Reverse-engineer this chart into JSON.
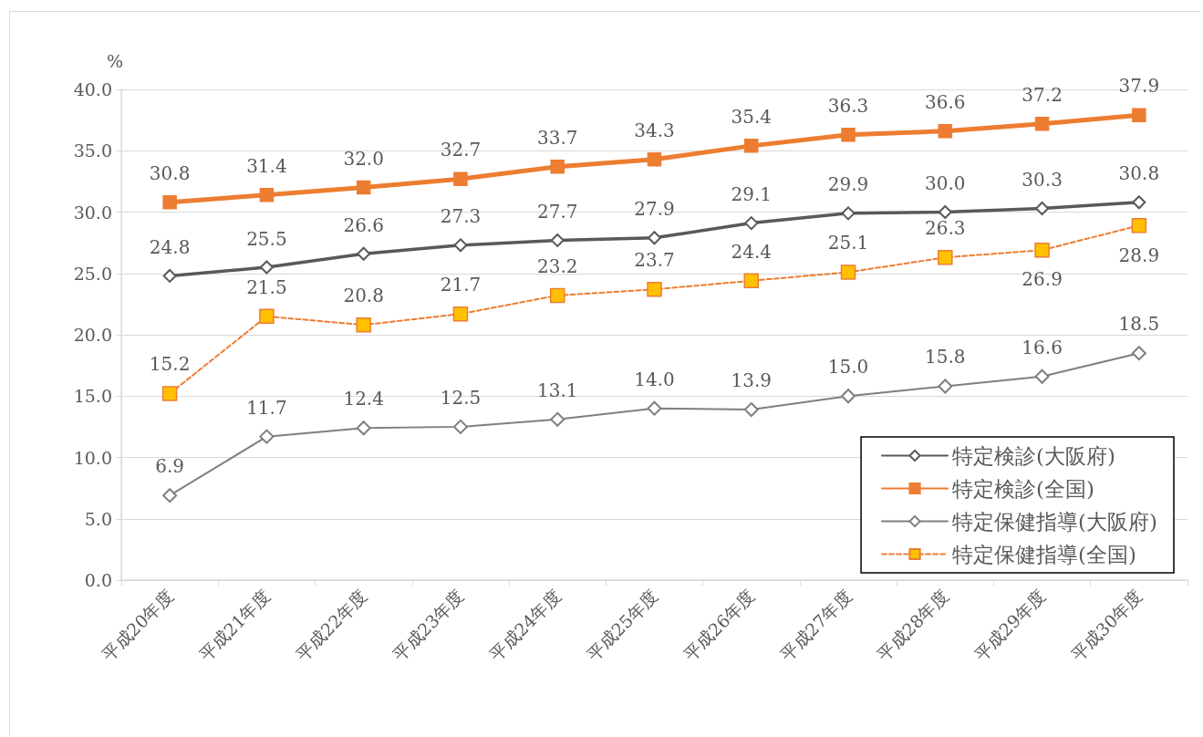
{
  "chart_data": {
    "type": "line",
    "ylabel": "%",
    "categories": [
      "平成20年度",
      "平成21年度",
      "平成22年度",
      "平成23年度",
      "平成24年度",
      "平成25年度",
      "平成26年度",
      "平成27年度",
      "平成28年度",
      "平成29年度",
      "平成30年度"
    ],
    "series": [
      {
        "name": "特定検診(大阪府)",
        "color": "#595959",
        "marker": "diamond",
        "line_style": "solid",
        "values": [
          24.8,
          25.5,
          26.6,
          27.3,
          27.7,
          27.9,
          29.1,
          29.9,
          30.0,
          30.3,
          30.8
        ],
        "value_labels": [
          "24.8",
          "25.5",
          "26.6",
          "27.3",
          "27.7",
          "27.9",
          "29.1",
          "29.9",
          "30.0",
          "30.3",
          "30.8"
        ]
      },
      {
        "name": "特定検診(全国)",
        "color": "#ed7d31",
        "marker": "square",
        "line_style": "solid",
        "values": [
          30.8,
          31.4,
          32.0,
          32.7,
          33.7,
          34.3,
          35.4,
          36.3,
          36.6,
          37.2,
          37.9
        ],
        "value_labels": [
          "30.8",
          "31.4",
          "32.0",
          "32.7",
          "33.7",
          "34.3",
          "35.4",
          "36.3",
          "36.6",
          "37.2",
          "37.9"
        ]
      },
      {
        "name": "特定保健指導(大阪府)",
        "color": "#7f7f7f",
        "marker": "diamond",
        "line_style": "solid",
        "values": [
          6.9,
          11.7,
          12.4,
          12.5,
          13.1,
          14.0,
          13.9,
          15.0,
          15.8,
          16.6,
          18.5
        ],
        "value_labels": [
          "6.9",
          "11.7",
          "12.4",
          "12.5",
          "13.1",
          "14.0",
          "13.9",
          "15.0",
          "15.8",
          "16.6",
          "18.5"
        ]
      },
      {
        "name": "特定保健指導(全国)",
        "color": "#ed7d31",
        "colors": [
          "#ffc000",
          "#ffc000",
          "#ffc000",
          "#ffc000",
          "#ffc000",
          "#ffc000",
          "#ffc000",
          "#ffc000",
          "#ffc000",
          "#ffc000",
          "#ffc000"
        ],
        "marker": "square",
        "line_style": "dashed",
        "values": [
          15.2,
          21.5,
          20.8,
          21.7,
          23.2,
          23.7,
          24.4,
          25.1,
          26.3,
          26.9,
          28.9
        ],
        "value_labels": [
          "15.2",
          "21.5",
          "20.8",
          "21.7",
          "23.2",
          "23.7",
          "24.4",
          "25.1",
          "26.3",
          "26.9",
          "28.9"
        ]
      }
    ],
    "ylim": [
      0,
      40
    ],
    "yticks": [
      {
        "value": 0,
        "label": "0.0"
      },
      {
        "value": 5,
        "label": "5.0"
      },
      {
        "value": 10,
        "label": "10.0"
      },
      {
        "value": 15,
        "label": "15.0"
      },
      {
        "value": 20,
        "label": "20.0"
      },
      {
        "value": 25,
        "label": "25.0"
      },
      {
        "value": 30,
        "label": "30.0"
      },
      {
        "value": 35,
        "label": "35.0"
      },
      {
        "value": 40,
        "label": "40.0"
      }
    ],
    "grid": "y",
    "legend": "bottom right"
  }
}
